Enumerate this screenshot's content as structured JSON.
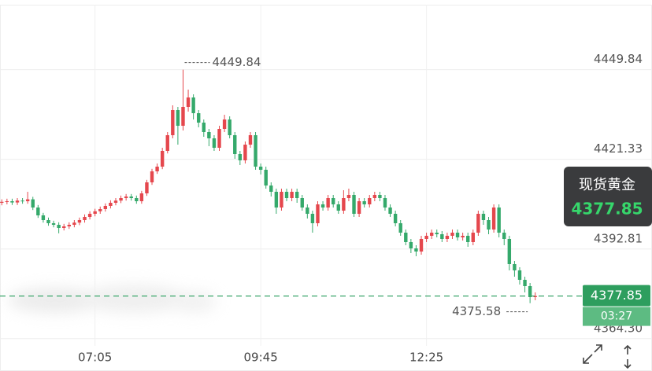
{
  "chart_data": {
    "type": "candlestick",
    "symbol_name": "现货黄金",
    "countdown": "03:27",
    "up_color": "#e5474d",
    "down_color": "#35a96b",
    "grid": true,
    "categories": [
      null,
      null,
      null,
      null,
      null,
      null,
      null,
      null,
      null,
      null,
      null,
      null,
      null,
      null,
      null,
      null,
      null,
      null,
      "07:05",
      null,
      null,
      null,
      null,
      null,
      null,
      null,
      null,
      null,
      null,
      null,
      null,
      null,
      null,
      null,
      null,
      null,
      null,
      null,
      null,
      null,
      null,
      null,
      null,
      null,
      null,
      null,
      null,
      null,
      null,
      null,
      "09:45",
      null,
      null,
      null,
      null,
      null,
      null,
      null,
      null,
      null,
      null,
      null,
      null,
      null,
      null,
      null,
      null,
      null,
      null,
      null,
      null,
      null,
      null,
      null,
      null,
      null,
      null,
      null,
      null,
      null,
      null,
      null,
      "12:25",
      null,
      null,
      null,
      null,
      null,
      null,
      null,
      null,
      null,
      null,
      null,
      null,
      null,
      null,
      null,
      null,
      null,
      null,
      null,
      null,
      null
    ],
    "open": [
      4407.5,
      4407.8,
      4408.0,
      4407.6,
      4408.2,
      4408.0,
      4408.6,
      4406.0,
      4403.5,
      4402.0,
      4401.0,
      4400.5,
      4399.5,
      4400.0,
      4400.5,
      4401.2,
      4402.0,
      4403.0,
      4404.0,
      4404.8,
      4405.5,
      4406.5,
      4407.5,
      4408.2,
      4409.0,
      4409.5,
      4409.0,
      4408.0,
      4410.5,
      4414.0,
      4417.5,
      4419.0,
      4424.0,
      4429.0,
      4437.0,
      4432.0,
      4438.0,
      4441.0,
      4436.0,
      4433.0,
      4430.0,
      4428.0,
      4425.0,
      4431.0,
      4434.0,
      4429.0,
      4423.0,
      4421.0,
      4426.0,
      4429.0,
      4419.0,
      4418.0,
      4413.0,
      4411.0,
      4406.0,
      4411.0,
      4409.0,
      4411.0,
      4409.0,
      4406.0,
      4404.0,
      4401.0,
      4407.0,
      4406.0,
      4409.0,
      4407.0,
      4405.0,
      4409.0,
      4410.0,
      4404.0,
      4408.0,
      4407.0,
      4409.0,
      4410.0,
      4409.0,
      4406.0,
      4404.0,
      4401.0,
      4398.0,
      4395.0,
      4393.0,
      4392.0,
      4396.0,
      4397.0,
      4398.0,
      4397.5,
      4396.0,
      4397.0,
      4398.0,
      4396.5,
      4397.0,
      4395.0,
      4398.0,
      4404.0,
      4402.0,
      4399.0,
      4406.0,
      4398.0,
      4396.0,
      4388.0,
      4386.0,
      4383.0,
      4381.0,
      4377.5
    ],
    "high": [
      4408.6,
      4408.8,
      4408.8,
      4409.0,
      4409.0,
      4411.0,
      4409.4,
      4406.8,
      4404.3,
      4402.8,
      4401.8,
      4401.3,
      4400.8,
      4401.3,
      4402.0,
      4402.8,
      4403.8,
      4404.8,
      4405.6,
      4406.3,
      4407.3,
      4408.3,
      4409.0,
      4409.8,
      4410.3,
      4410.3,
      4409.8,
      4411.3,
      4414.8,
      4418.3,
      4420.0,
      4425.0,
      4430.0,
      4438.5,
      4438.0,
      4449.84,
      4443.5,
      4442.0,
      4437.0,
      4434.0,
      4431.0,
      4429.0,
      4432.0,
      4435.5,
      4435.0,
      4430.0,
      4424.0,
      4427.0,
      4430.0,
      4430.0,
      4420.0,
      4419.0,
      4414.0,
      4412.0,
      4412.0,
      4412.0,
      4412.0,
      4412.0,
      4410.0,
      4407.0,
      4405.0,
      4408.0,
      4408.0,
      4410.0,
      4410.0,
      4408.0,
      4411.5,
      4412.0,
      4411.0,
      4409.0,
      4409.0,
      4410.0,
      4411.0,
      4411.0,
      4410.0,
      4407.0,
      4405.0,
      4402.0,
      4399.0,
      4396.0,
      4394.0,
      4397.0,
      4398.0,
      4399.0,
      4399.0,
      4398.5,
      4398.0,
      4399.0,
      4399.0,
      4398.0,
      4398.0,
      4399.0,
      4405.0,
      4405.0,
      4403.0,
      4407.0,
      4407.0,
      4399.0,
      4397.0,
      4389.0,
      4387.0,
      4384.0,
      4382.0,
      4379.0
    ],
    "low": [
      4406.7,
      4407.0,
      4406.8,
      4406.8,
      4407.2,
      4407.2,
      4405.2,
      4402.7,
      4401.2,
      4400.2,
      4399.7,
      4397.8,
      4398.7,
      4399.2,
      4399.7,
      4400.4,
      4401.2,
      4402.2,
      4403.2,
      4404.0,
      4404.7,
      4405.7,
      4406.7,
      4407.4,
      4408.2,
      4408.2,
      4407.2,
      4407.2,
      4409.7,
      4413.2,
      4416.7,
      4418.2,
      4423.2,
      4428.0,
      4426.0,
      4430.5,
      4436.5,
      4434.0,
      4431.5,
      4428.5,
      4425.5,
      4424.0,
      4424.0,
      4430.0,
      4428.0,
      4421.5,
      4419.5,
      4420.0,
      4425.0,
      4418.0,
      4416.5,
      4412.0,
      4409.5,
      4404.0,
      4405.0,
      4408.0,
      4408.0,
      4407.5,
      4405.0,
      4402.5,
      4398.0,
      4400.0,
      4405.0,
      4405.0,
      4406.0,
      4404.0,
      4404.0,
      4408.0,
      4403.0,
      4403.0,
      4406.0,
      4406.0,
      4408.0,
      4408.0,
      4405.0,
      4403.0,
      4400.0,
      4397.0,
      4394.0,
      4391.5,
      4390.5,
      4391.0,
      4395.0,
      4396.0,
      4396.5,
      4395.0,
      4395.0,
      4396.0,
      4395.5,
      4395.5,
      4393.5,
      4394.0,
      4397.0,
      4400.5,
      4397.5,
      4398.0,
      4396.5,
      4394.0,
      4386.0,
      4384.0,
      4381.5,
      4379.0,
      4375.58,
      4376.5
    ],
    "close": [
      4407.8,
      4408.0,
      4407.6,
      4408.2,
      4408.0,
      4408.6,
      4406.0,
      4403.5,
      4402.0,
      4401.0,
      4400.5,
      4399.5,
      4400.0,
      4400.5,
      4401.2,
      4402.0,
      4403.0,
      4404.0,
      4404.8,
      4405.5,
      4406.5,
      4407.5,
      4408.2,
      4409.0,
      4409.5,
      4409.0,
      4408.0,
      4410.5,
      4414.0,
      4417.5,
      4419.0,
      4424.0,
      4429.0,
      4437.0,
      4432.0,
      4438.0,
      4441.0,
      4436.0,
      4433.0,
      4430.0,
      4428.0,
      4425.0,
      4431.0,
      4434.0,
      4429.0,
      4423.0,
      4421.0,
      4426.0,
      4429.0,
      4419.0,
      4418.0,
      4413.0,
      4411.0,
      4406.0,
      4411.0,
      4409.0,
      4411.0,
      4409.0,
      4406.0,
      4404.0,
      4401.0,
      4407.0,
      4406.0,
      4409.0,
      4407.0,
      4405.0,
      4409.0,
      4410.0,
      4404.0,
      4408.0,
      4407.0,
      4409.0,
      4410.0,
      4409.0,
      4406.0,
      4404.0,
      4401.0,
      4398.0,
      4395.0,
      4393.0,
      4392.0,
      4396.0,
      4397.0,
      4398.0,
      4397.5,
      4396.0,
      4397.0,
      4398.0,
      4396.5,
      4397.0,
      4395.0,
      4398.0,
      4404.0,
      4402.0,
      4399.0,
      4406.0,
      4398.0,
      4396.0,
      4388.0,
      4386.0,
      4383.0,
      4381.0,
      4377.5,
      4377.85
    ],
    "ylim": [
      4362,
      4470
    ],
    "yticks": [
      {
        "value": 4364.3,
        "label": "4364.30"
      },
      4392.81,
      4421.33,
      4449.84
    ]
  }
}
